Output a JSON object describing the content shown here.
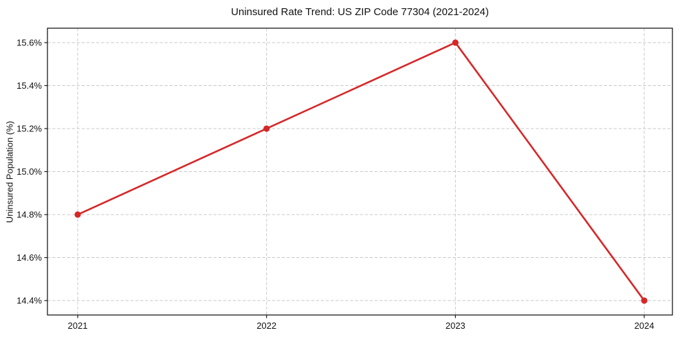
{
  "chart_data": {
    "type": "line",
    "title": "Uninsured Rate Trend: US ZIP Code 77304 (2021-2024)",
    "xlabel": "",
    "ylabel": "Uninsured Population (%)",
    "x": [
      "2021",
      "2022",
      "2023",
      "2024"
    ],
    "series": [
      {
        "values": [
          14.8,
          15.2,
          15.6,
          14.4
        ],
        "color": "#d62728",
        "marker": "circle"
      }
    ],
    "xtick_labels": [
      "2021",
      "2022",
      "2023",
      "2024"
    ],
    "ytick_values": [
      14.4,
      14.6,
      14.8,
      15.0,
      15.2,
      15.4,
      15.6
    ],
    "ytick_labels": [
      "14.4%",
      "14.6%",
      "14.8%",
      "15.0%",
      "15.2%",
      "15.4%",
      "15.6%"
    ],
    "ylim": [
      14.333,
      15.667
    ],
    "grid": true,
    "grid_style": "dashed",
    "legend_position": "none",
    "colors": {
      "line": "#d62728",
      "grid": "#c9c9c9",
      "spine": "#1a1a1a",
      "background": "#ffffff",
      "text": "#111111"
    }
  }
}
